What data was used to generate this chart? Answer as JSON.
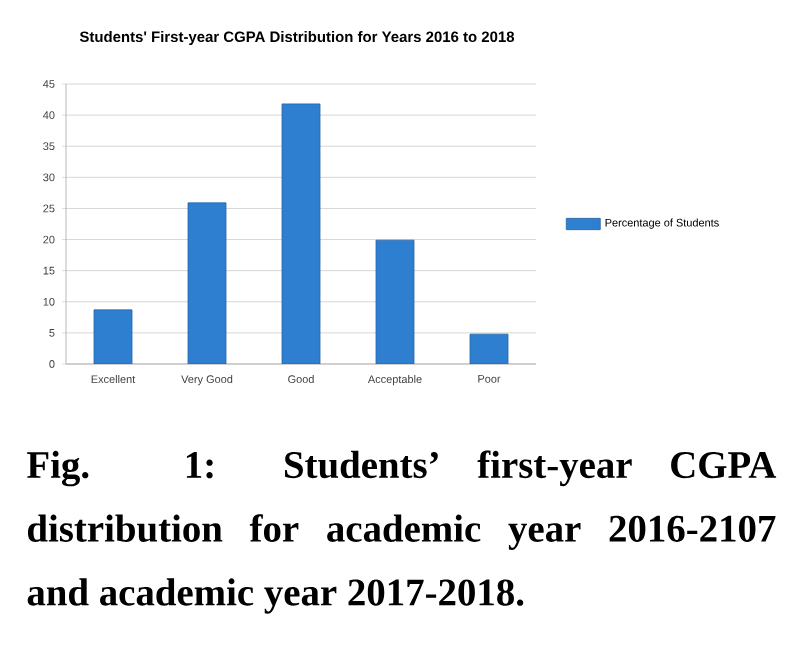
{
  "chart_data": {
    "type": "bar",
    "title": "Students' First-year CGPA Distribution for Years 2016 to 2018",
    "categories": [
      "Excellent",
      "Very Good",
      "Good",
      "Acceptable",
      "Poor"
    ],
    "series": [
      {
        "name": "Percentage of Students",
        "color": "#2f7fd0",
        "values": [
          8.7,
          25.9,
          41.8,
          19.9,
          4.8
        ]
      }
    ],
    "ylim": [
      0,
      45
    ],
    "yticks": [
      0,
      5,
      10,
      15,
      20,
      25,
      30,
      35,
      40,
      45
    ],
    "grid": "y",
    "legend": "right",
    "annotations": [
      "Fig. 1: Students’ first-year CGPA distribution for academic year 2016-2107 and academic year 2017-2018."
    ]
  }
}
